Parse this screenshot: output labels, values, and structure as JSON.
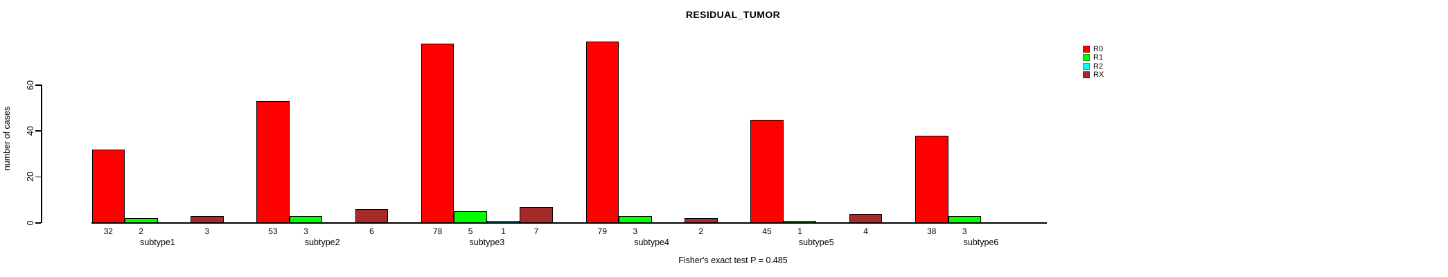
{
  "chart_data": {
    "type": "bar",
    "title": "RESIDUAL_TUMOR",
    "ylabel": "number of cases",
    "annotation": "Fisher's exact test P = 0.485",
    "categories": [
      "subtype1",
      "subtype2",
      "subtype3",
      "subtype4",
      "subtype5",
      "subtype6"
    ],
    "series": [
      {
        "name": "R0",
        "color": "#FF0000",
        "values": [
          32,
          53,
          78,
          79,
          45,
          38
        ]
      },
      {
        "name": "R1",
        "color": "#00FF00",
        "values": [
          2,
          3,
          5,
          3,
          1,
          3
        ]
      },
      {
        "name": "R2",
        "color": "#00FFFF",
        "values": [
          0,
          0,
          1,
          0,
          0,
          0
        ]
      },
      {
        "name": "RX",
        "color": "#A52A2A",
        "values": [
          3,
          6,
          7,
          2,
          4,
          0
        ]
      }
    ],
    "yticks": [
      0,
      20,
      40,
      60
    ],
    "ylim": [
      0,
      79
    ],
    "grid": false,
    "legend_position": "right",
    "value_labels": "shown below bars, only for non-zero values",
    "background": "#ffffff",
    "text_color": "#000000"
  }
}
